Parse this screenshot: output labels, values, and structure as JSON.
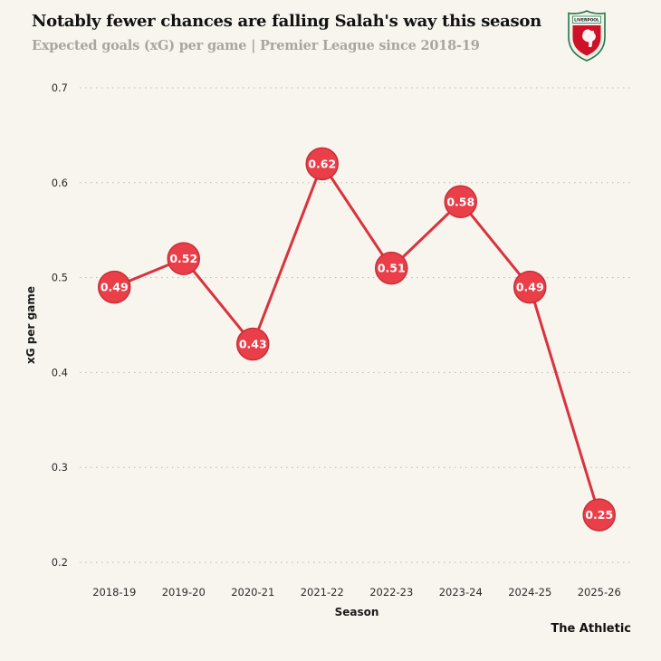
{
  "header": {
    "title": "Notably fewer chances are falling Salah's way this season",
    "subtitle": "Expected goals (xG) per game | Premier League since 2018-19"
  },
  "branding": {
    "crest_icon": "liverpool-crest",
    "crest_text": "LIVERPOOL",
    "footer": "The Athletic"
  },
  "colors": {
    "background": "#f7f5ee",
    "accent_red": "#ea3f49",
    "subtitle_gray": "#a8a6a0"
  },
  "chart_data": {
    "type": "line",
    "categories": [
      "2018-19",
      "2019-20",
      "2020-21",
      "2021-22",
      "2022-23",
      "2023-24",
      "2024-25",
      "2025-26"
    ],
    "values": [
      0.49,
      0.52,
      0.43,
      0.62,
      0.51,
      0.58,
      0.49,
      0.25
    ],
    "marker_labels": [
      "0.49",
      "0.52",
      "0.43",
      "0.62",
      "0.51",
      "0.58",
      "0.49",
      "0.25"
    ],
    "title": "Notably fewer chances are falling Salah's way this season",
    "subtitle": "Expected goals (xG) per game | Premier League since 2018-19",
    "xlabel": "Season",
    "ylabel": "xG per game",
    "ylim": [
      0.2,
      0.7
    ],
    "yticks": [
      0.2,
      0.3,
      0.4,
      0.5,
      0.6,
      0.7
    ],
    "grid": "horizontal-dotted",
    "legend": "none",
    "colors": {
      "line": "#d8333e",
      "marker_fill": "#ea3f49",
      "marker_stroke": "#c62f38",
      "marker_text": "#ffffff",
      "grid": "#b9b7b0",
      "tick_text": "#2b2b2b",
      "axis_label_text": "#1a1a1a"
    }
  }
}
